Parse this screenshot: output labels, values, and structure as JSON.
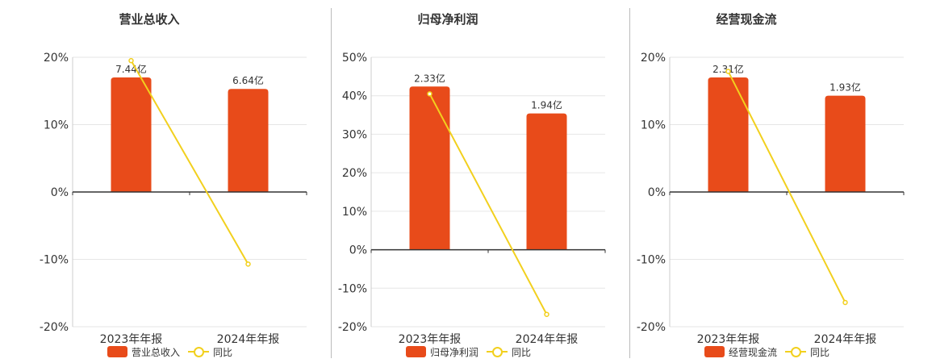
{
  "colors": {
    "bar": "#E84B1A",
    "line": "#F2D01E",
    "grid": "#e6e6e6",
    "axis": "#333333",
    "text": "#333333"
  },
  "legend": {
    "line_label": "同比"
  },
  "chart_data": [
    {
      "type": "bar",
      "title": "营业总收入",
      "categories": [
        "2023年年报",
        "2024年年报"
      ],
      "bar_labels": [
        "7.44亿",
        "6.64亿"
      ],
      "series": [
        {
          "name": "营业总收入",
          "type": "bar",
          "values": [
            17.0,
            15.3
          ]
        },
        {
          "name": "同比",
          "type": "line",
          "values": [
            19.5,
            -10.7
          ]
        }
      ],
      "ylim": [
        -20,
        20
      ],
      "yticks": [
        20,
        10,
        0,
        -10,
        -20
      ],
      "ytick_labels": [
        "20%",
        "10%",
        "0%",
        "-10%",
        "-20%"
      ],
      "grid": true
    },
    {
      "type": "bar",
      "title": "归母净利润",
      "categories": [
        "2023年年报",
        "2024年年报"
      ],
      "bar_labels": [
        "2.33亿",
        "1.94亿"
      ],
      "series": [
        {
          "name": "归母净利润",
          "type": "bar",
          "values": [
            42.4,
            35.4
          ]
        },
        {
          "name": "同比",
          "type": "line",
          "values": [
            40.5,
            -16.8
          ]
        }
      ],
      "ylim": [
        -20,
        50
      ],
      "yticks": [
        50,
        40,
        30,
        20,
        10,
        0,
        -10,
        -20
      ],
      "ytick_labels": [
        "50%",
        "40%",
        "30%",
        "20%",
        "10%",
        "0%",
        "-10%",
        "-20%"
      ],
      "grid": true
    },
    {
      "type": "bar",
      "title": "经营现金流",
      "categories": [
        "2023年年报",
        "2024年年报"
      ],
      "bar_labels": [
        "2.31亿",
        "1.93亿"
      ],
      "series": [
        {
          "name": "经营现金流",
          "type": "bar",
          "values": [
            17.0,
            14.3
          ]
        },
        {
          "name": "同比",
          "type": "line",
          "values": [
            17.9,
            -16.4
          ]
        }
      ],
      "ylim": [
        -20,
        20
      ],
      "yticks": [
        20,
        10,
        0,
        -10,
        -20
      ],
      "ytick_labels": [
        "20%",
        "10%",
        "0%",
        "-10%",
        "-20%"
      ],
      "grid": true
    }
  ]
}
